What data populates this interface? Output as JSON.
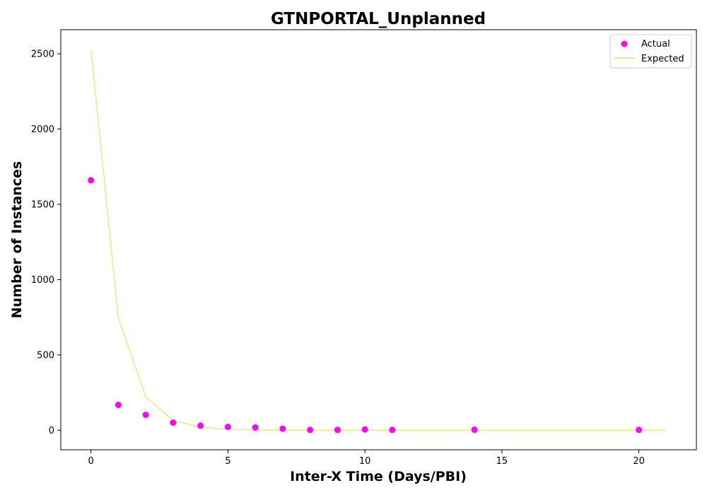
{
  "chart_data": {
    "type": "scatter",
    "title": "GTNPORTAL_Unplanned",
    "xlabel": "Inter-X Time (Days/PBI)",
    "ylabel": "Number of Instances",
    "xlim": [
      -1.1,
      22.1
    ],
    "ylim": [
      -130,
      2660
    ],
    "xticks": [
      0,
      5,
      10,
      15,
      20
    ],
    "yticks": [
      0,
      500,
      1000,
      1500,
      2000,
      2500
    ],
    "grid": false,
    "legend_position": "top-right",
    "colors": {
      "actual": "#ff00ff",
      "expected": "#f0e68c"
    },
    "series": [
      {
        "name": "Actual",
        "kind": "scatter",
        "x": [
          0,
          1,
          2,
          3,
          4,
          5,
          6,
          7,
          8,
          9,
          10,
          11,
          14,
          20
        ],
        "y": [
          1660,
          168,
          102,
          50,
          30,
          22,
          18,
          10,
          2,
          2,
          5,
          2,
          3,
          2
        ]
      },
      {
        "name": "Expected",
        "kind": "line",
        "x": [
          0,
          1,
          2,
          3,
          4,
          5,
          6,
          7,
          8,
          9,
          10,
          11,
          12,
          13,
          14,
          15,
          16,
          17,
          18,
          19,
          20,
          21
        ],
        "y": [
          2530,
          748,
          221,
          65,
          19,
          6,
          2,
          0.5,
          0.15,
          0.05,
          0,
          0,
          0,
          0,
          0,
          0,
          0,
          0,
          0,
          0,
          0,
          0
        ]
      }
    ]
  }
}
